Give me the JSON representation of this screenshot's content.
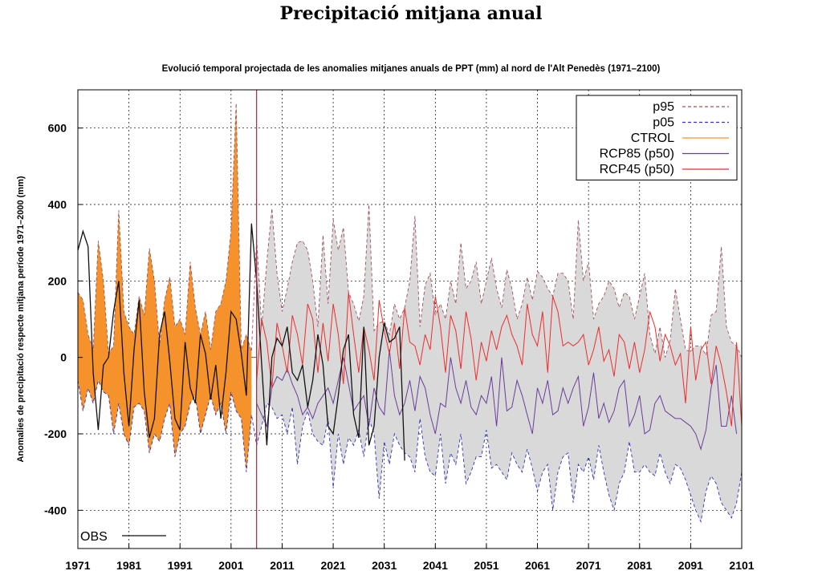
{
  "page_title": "Precipitació mitjana anual",
  "chart_data": {
    "type": "area",
    "title": "Evolució temporal projectada de les anomalies mitjanes anuals de PPT (mm) al nord de l'Alt Penedès (1971–2100)",
    "ylabel": "Anomalies de precipitació respecte mitjana període 1971–2000 (mm)",
    "xlabel": "",
    "xlim": [
      1971,
      2101
    ],
    "ylim": [
      -500,
      700
    ],
    "x_ticks": [
      "1971",
      "1981",
      "1991",
      "2001",
      "2011",
      "2021",
      "2031",
      "2041",
      "2051",
      "2061",
      "2071",
      "2081",
      "2091",
      "2101"
    ],
    "y_ticks": [
      "-400",
      "-200",
      "0",
      "200",
      "400",
      "600"
    ],
    "grid": true,
    "vertical_marker_year": 2006,
    "legend_position": "top-right",
    "legend": [
      "p95",
      "p05",
      "CTROL",
      "RCP85 (p50)",
      "RCP45 (p50)"
    ],
    "obs_legend": "OBS",
    "series": [
      {
        "name": "p95",
        "style": "dashed",
        "color": "#a0525c",
        "x_start": 1971,
        "values": [
          170,
          150,
          60,
          20,
          305,
          200,
          10,
          30,
          385,
          120,
          80,
          60,
          160,
          110,
          285,
          200,
          30,
          150,
          210,
          80,
          100,
          60,
          250,
          130,
          60,
          120,
          20,
          120,
          140,
          200,
          330,
          665,
          20,
          60,
          15,
          310,
          80,
          250,
          390,
          220,
          120,
          180,
          250,
          300,
          305,
          280,
          200,
          80,
          320,
          140,
          360,
          280,
          340,
          170,
          140,
          95,
          160,
          400,
          70,
          90,
          95,
          60,
          140,
          100,
          130,
          200,
          370,
          80,
          190,
          220,
          110,
          140,
          100,
          200,
          140,
          300,
          180,
          200,
          250,
          140,
          200,
          260,
          180,
          130,
          230,
          180,
          100,
          140,
          210,
          150,
          225,
          210,
          180,
          160,
          220,
          220,
          200,
          100,
          360,
          200,
          250,
          100,
          140,
          160,
          200,
          180,
          130,
          170,
          160,
          100,
          160,
          220,
          60,
          10,
          80,
          0,
          45,
          180,
          100,
          20,
          15,
          30,
          30,
          5,
          110,
          120,
          290,
          80,
          40,
          30,
          0
        ]
      },
      {
        "name": "p05",
        "style": "dashed",
        "color": "#3333bb",
        "x_start": 1971,
        "values": [
          -60,
          -140,
          -80,
          -120,
          -60,
          -90,
          -100,
          -200,
          -120,
          -200,
          -230,
          -130,
          -120,
          -140,
          -250,
          -200,
          -220,
          -160,
          -120,
          -260,
          -200,
          -180,
          -120,
          -100,
          -200,
          -150,
          -100,
          -150,
          -120,
          -200,
          -90,
          -140,
          -160,
          -300,
          -150,
          -230,
          -180,
          -120,
          -130,
          -160,
          -150,
          -200,
          -130,
          -280,
          -180,
          -140,
          -200,
          -220,
          -230,
          -160,
          -340,
          -200,
          -280,
          -210,
          -230,
          -190,
          -260,
          -160,
          -200,
          -370,
          -220,
          -280,
          -200,
          -230,
          -250,
          -260,
          -300,
          -160,
          -260,
          -300,
          -310,
          -200,
          -330,
          -250,
          -280,
          -200,
          -330,
          -300,
          -260,
          -260,
          -190,
          -290,
          -280,
          -300,
          -320,
          -250,
          -280,
          -300,
          -240,
          -290,
          -350,
          -300,
          -280,
          -400,
          -300,
          -260,
          -250,
          -380,
          -280,
          -300,
          -260,
          -320,
          -230,
          -300,
          -360,
          -400,
          -330,
          -300,
          -220,
          -300,
          -300,
          -280,
          -300,
          -310,
          -250,
          -300,
          -330,
          -280,
          -290,
          -320,
          -360,
          -400,
          -430,
          -350,
          -310,
          -330,
          -380,
          -400,
          -420,
          -380,
          -300
        ]
      },
      {
        "name": "CTROL",
        "style": "fill",
        "color": "#f5922b",
        "x_start": 1971,
        "x_end": 2005
      },
      {
        "name": "RCP85 (p50)",
        "style": "solid",
        "color": "#6a3d9a",
        "x_start": 2006,
        "values": [
          -120,
          -150,
          -180,
          -80,
          -50,
          -60,
          -30,
          -70,
          -100,
          -150,
          -130,
          -160,
          -120,
          -100,
          -80,
          -120,
          -60,
          0,
          -70,
          -140,
          -120,
          -100,
          -180,
          -80,
          -130,
          -150,
          20,
          -100,
          -150,
          -120,
          -60,
          -140,
          -50,
          -80,
          -150,
          -200,
          -120,
          -130,
          0,
          -80,
          -120,
          -60,
          -130,
          -150,
          -100,
          -120,
          -50,
          -180,
          0,
          -140,
          -130,
          -60,
          -100,
          -150,
          -200,
          -80,
          -120,
          -60,
          -150,
          -140,
          -80,
          -120,
          -80,
          -50,
          -180,
          -130,
          -40,
          -160,
          -120,
          -170,
          -140,
          -80,
          -60,
          -180,
          -150,
          -100,
          -200,
          -190,
          -120,
          -100,
          -140,
          -150,
          -160,
          -160,
          -170,
          -180,
          -200,
          -240,
          -190,
          -80,
          -20,
          -180,
          -180,
          -100,
          -200
        ]
      },
      {
        "name": "RCP45 (p50)",
        "style": "solid",
        "color": "#ee2c2c",
        "x_start": 2006,
        "values": [
          -60,
          100,
          40,
          -80,
          90,
          30,
          -40,
          110,
          60,
          -20,
          140,
          100,
          -40,
          90,
          -10,
          140,
          60,
          -70,
          170,
          60,
          -40,
          80,
          20,
          -60,
          150,
          70,
          10,
          90,
          -30,
          130,
          40,
          30,
          -20,
          60,
          20,
          160,
          80,
          -40,
          110,
          70,
          -30,
          120,
          50,
          -60,
          40,
          -10,
          70,
          20,
          80,
          110,
          60,
          30,
          -20,
          140,
          60,
          30,
          120,
          -40,
          160,
          120,
          30,
          40,
          30,
          40,
          60,
          -20,
          20,
          80,
          -10,
          20,
          -50,
          60,
          40,
          -30,
          40,
          -40,
          20,
          120,
          80,
          -10,
          60,
          30,
          -20,
          10,
          -120,
          80,
          -60,
          20,
          40,
          -70,
          30,
          -20,
          -90,
          -180,
          40,
          -180
        ]
      },
      {
        "name": "OBS",
        "style": "solid",
        "color": "#111111",
        "x_start": 1971,
        "values": [
          280,
          330,
          290,
          -40,
          -190,
          -20,
          0,
          120,
          200,
          -40,
          -180,
          20,
          150,
          -90,
          -210,
          -160,
          60,
          120,
          -10,
          -160,
          -190,
          40,
          -80,
          -120,
          60,
          10,
          -110,
          -20,
          -160,
          -40,
          120,
          100,
          10,
          -100,
          350,
          200,
          -20,
          -230,
          0,
          50,
          30,
          80,
          -40,
          -60,
          -20,
          -130,
          -60,
          60,
          -20,
          -180,
          -200,
          -100,
          20,
          60,
          -150,
          -210,
          80,
          -230,
          -180,
          0,
          90,
          40,
          50,
          80,
          -270
        ]
      }
    ]
  }
}
